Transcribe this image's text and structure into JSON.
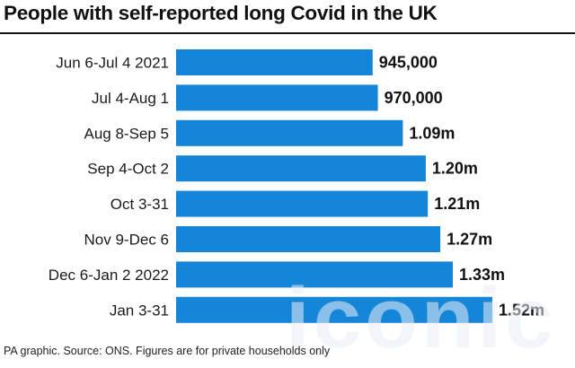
{
  "header": {
    "title": "People with self-reported long Covid in the UK"
  },
  "footer": {
    "note": "PA graphic. Source: ONS. Figures are for private households only"
  },
  "watermark": {
    "text": "iconic"
  },
  "colors": {
    "bar": "#1585d8",
    "text": "#1a1a1a",
    "rule": "#111111"
  },
  "chart_data": {
    "type": "bar",
    "orientation": "horizontal",
    "title": "People with self-reported long Covid in the UK",
    "xlabel": "",
    "ylabel": "",
    "grid": false,
    "legend": "none",
    "categories": [
      "Jun 6-Jul 4 2021",
      "Jul 4-Aug 1",
      "Aug 8-Sep 5",
      "Sep 4-Oct 2",
      "Oct 3-31",
      "Nov 9-Dec 6",
      "Dec 6-Jan 2 2022",
      "Jan 3-31"
    ],
    "values": [
      945000,
      970000,
      1090000,
      1200000,
      1210000,
      1270000,
      1330000,
      1520000
    ],
    "labels": [
      "945,000",
      "970,000",
      "1.09m",
      "1.20m",
      "1.21m",
      "1.27m",
      "1.33m",
      "1.52m"
    ],
    "xlim": [
      0,
      1520000
    ]
  }
}
